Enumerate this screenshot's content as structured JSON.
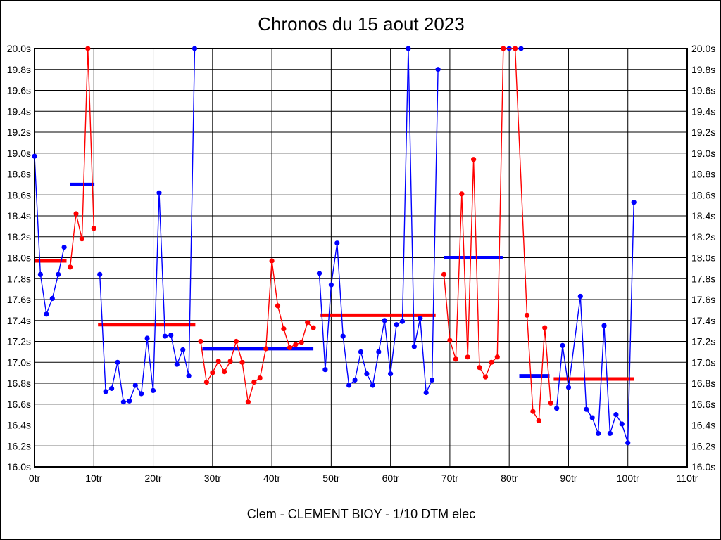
{
  "window": {
    "background": "#ffffff",
    "frame_color": "#000000"
  },
  "chart_data": {
    "type": "line",
    "title": "Chronos du 15 aout 2023",
    "subtitle": "Clem - CLEMENT BIOY - 1/10 DTM elec",
    "grid": true,
    "legend": "none",
    "x_axis": {
      "unit_suffix": "tr",
      "min": 0,
      "max": 110,
      "tick_step": 10,
      "tick_labels": [
        "0tr",
        "10tr",
        "20tr",
        "30tr",
        "40tr",
        "50tr",
        "60tr",
        "70tr",
        "80tr",
        "90tr",
        "100tr",
        "110tr"
      ]
    },
    "y_axis": {
      "unit_suffix": "s",
      "min": 16.0,
      "max": 20.0,
      "tick_step": 0.2,
      "tick_labels": [
        "16.0s",
        "16.2s",
        "16.4s",
        "16.6s",
        "16.8s",
        "17.0s",
        "17.2s",
        "17.4s",
        "17.6s",
        "17.8s",
        "18.0s",
        "18.2s",
        "18.4s",
        "18.6s",
        "18.8s",
        "19.0s",
        "19.2s",
        "19.4s",
        "19.6s",
        "19.8s",
        "20.0s"
      ],
      "labels_on_both_sides": true
    },
    "colors": {
      "blue": "#0000ff",
      "red": "#ff0000",
      "grid": "#000000"
    },
    "marker_radius": 3.6,
    "line_width": 1.4,
    "average_line_width": 5,
    "series": [
      {
        "name": "driver-blue",
        "color": "blue",
        "segments": [
          [
            [
              0,
              18.97
            ],
            [
              1,
              17.84
            ],
            [
              2,
              17.46
            ],
            [
              3,
              17.61
            ],
            [
              4,
              17.84
            ],
            [
              5,
              18.1
            ]
          ],
          [
            [
              11,
              17.84
            ],
            [
              12,
              16.72
            ],
            [
              13,
              16.75
            ],
            [
              14,
              17.0
            ],
            [
              15,
              16.62
            ],
            [
              16,
              16.63
            ],
            [
              17,
              16.78
            ],
            [
              18,
              16.7
            ],
            [
              19,
              17.23
            ],
            [
              20,
              16.73
            ],
            [
              21,
              18.62
            ],
            [
              22,
              17.25
            ],
            [
              23,
              17.26
            ],
            [
              24,
              16.98
            ],
            [
              25,
              17.12
            ],
            [
              26,
              16.87
            ],
            [
              27,
              20.0
            ]
          ],
          [
            [
              48,
              17.85
            ],
            [
              49,
              16.93
            ],
            [
              50,
              17.74
            ],
            [
              51,
              18.14
            ],
            [
              52,
              17.25
            ],
            [
              53,
              16.78
            ],
            [
              54,
              16.83
            ],
            [
              55,
              17.1
            ],
            [
              56,
              16.89
            ],
            [
              57,
              16.78
            ],
            [
              58,
              17.1
            ],
            [
              59,
              17.4
            ],
            [
              60,
              16.89
            ],
            [
              61,
              17.36
            ],
            [
              62,
              17.39
            ],
            [
              63,
              20.0
            ],
            [
              64,
              17.15
            ],
            [
              65,
              17.42
            ],
            [
              66,
              16.71
            ],
            [
              67,
              16.83
            ],
            [
              68,
              19.8
            ]
          ],
          [
            [
              80,
              20.0
            ],
            [
              82,
              20.0
            ]
          ],
          [
            [
              88,
              16.56
            ],
            [
              89,
              17.16
            ],
            [
              90,
              16.76
            ],
            [
              92,
              17.63
            ],
            [
              93,
              16.55
            ],
            [
              94,
              16.47
            ],
            [
              95,
              16.32
            ],
            [
              96,
              17.35
            ],
            [
              97,
              16.32
            ],
            [
              98,
              16.5
            ],
            [
              99,
              16.41
            ],
            [
              100,
              16.23
            ],
            [
              101,
              18.53
            ]
          ]
        ]
      },
      {
        "name": "driver-red",
        "color": "red",
        "segments": [
          [
            [
              6,
              17.91
            ],
            [
              7,
              18.42
            ],
            [
              8,
              18.18
            ],
            [
              9,
              20.0
            ],
            [
              10,
              18.28
            ]
          ],
          [
            [
              28,
              17.2
            ],
            [
              29,
              16.81
            ],
            [
              30,
              16.9
            ],
            [
              31,
              17.01
            ],
            [
              32,
              16.91
            ],
            [
              33,
              17.01
            ],
            [
              34,
              17.2
            ],
            [
              35,
              17.0
            ],
            [
              36,
              16.62
            ],
            [
              37,
              16.81
            ],
            [
              38,
              16.85
            ],
            [
              39,
              17.13
            ],
            [
              40,
              17.97
            ],
            [
              41,
              17.54
            ],
            [
              42,
              17.32
            ],
            [
              43,
              17.14
            ],
            [
              44,
              17.17
            ],
            [
              45,
              17.19
            ],
            [
              46,
              17.38
            ],
            [
              47,
              17.33
            ]
          ],
          [
            [
              69,
              17.84
            ],
            [
              70,
              17.21
            ],
            [
              71,
              17.03
            ],
            [
              72,
              18.61
            ],
            [
              73,
              17.05
            ],
            [
              74,
              18.94
            ],
            [
              75,
              16.95
            ],
            [
              76,
              16.86
            ],
            [
              77,
              17.0
            ],
            [
              78,
              17.05
            ],
            [
              79,
              20.0
            ],
            [
              81,
              20.0
            ],
            [
              83,
              17.45
            ],
            [
              84,
              16.53
            ],
            [
              85,
              16.44
            ],
            [
              86,
              17.33
            ],
            [
              87,
              16.61
            ]
          ]
        ]
      }
    ],
    "average_lines": [
      {
        "color": "red",
        "x_start": 0.0,
        "x_end": 5.4,
        "value": 17.97
      },
      {
        "color": "blue",
        "x_start": 6.0,
        "x_end": 10.1,
        "value": 18.7
      },
      {
        "color": "red",
        "x_start": 10.7,
        "x_end": 27.1,
        "value": 17.36
      },
      {
        "color": "blue",
        "x_start": 28.3,
        "x_end": 47.0,
        "value": 17.13
      },
      {
        "color": "red",
        "x_start": 48.2,
        "x_end": 67.6,
        "value": 17.45
      },
      {
        "color": "blue",
        "x_start": 69.0,
        "x_end": 78.9,
        "value": 18.0
      },
      {
        "color": "blue",
        "x_start": 81.7,
        "x_end": 86.8,
        "value": 16.87
      },
      {
        "color": "red",
        "x_start": 87.5,
        "x_end": 101.1,
        "value": 16.84
      }
    ]
  }
}
